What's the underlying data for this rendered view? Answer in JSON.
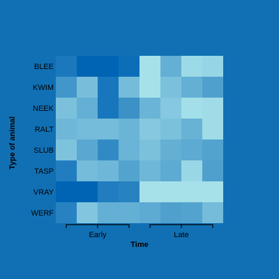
{
  "chart_data": {
    "type": "heatmap",
    "xlabel": "Time",
    "ylabel": "Type of animal",
    "rows": [
      "BLEE",
      "KWIM",
      "NEEK",
      "RALT",
      "SLUB",
      "TASP",
      "VRAY",
      "WERF"
    ],
    "column_groups": [
      {
        "label": "Early",
        "columns": 4
      },
      {
        "label": "Late",
        "columns": 4
      }
    ],
    "color_scale": {
      "low": "#a6e1ea",
      "high": "#0064b4"
    },
    "values": [
      [
        0.84,
        1.0,
        1.0,
        0.92,
        0.0,
        0.4,
        0.06,
        0.1
      ],
      [
        0.6,
        0.28,
        0.86,
        0.3,
        0.0,
        0.26,
        0.4,
        0.52
      ],
      [
        0.26,
        0.4,
        0.86,
        0.64,
        0.36,
        0.2,
        0.02,
        0.04
      ],
      [
        0.34,
        0.3,
        0.3,
        0.36,
        0.2,
        0.26,
        0.38,
        0.04
      ],
      [
        0.24,
        0.46,
        0.7,
        0.36,
        0.26,
        0.4,
        0.44,
        0.5
      ],
      [
        0.8,
        0.3,
        0.34,
        0.5,
        0.34,
        0.44,
        0.08,
        0.52
      ],
      [
        1.0,
        1.0,
        0.8,
        0.76,
        0.0,
        0.0,
        0.0,
        0.0
      ],
      [
        0.76,
        0.22,
        0.4,
        0.4,
        0.44,
        0.52,
        0.5,
        0.3
      ]
    ]
  }
}
